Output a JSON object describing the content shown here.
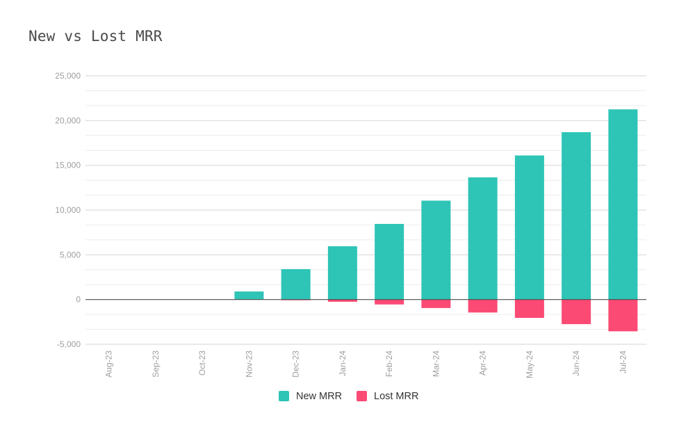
{
  "chart_data": {
    "type": "bar",
    "title": "New vs Lost MRR",
    "xlabel": "",
    "ylabel": "",
    "categories": [
      "Aug-23",
      "Sep-23",
      "Oct-23",
      "Nov-23",
      "Dec-23",
      "Jan-24",
      "Feb-24",
      "Mar-24",
      "Apr-24",
      "May-24",
      "Jun-24",
      "Jul-24"
    ],
    "series": [
      {
        "name": "New MRR",
        "color": "#2ec4b6",
        "values": [
          0,
          0,
          0,
          900,
          3400,
          5950,
          8450,
          11050,
          13650,
          16100,
          18700,
          21250
        ]
      },
      {
        "name": "Lost MRR",
        "color": "#fb4a74",
        "values": [
          0,
          0,
          0,
          0,
          -50,
          -250,
          -550,
          -950,
          -1450,
          -2050,
          -2750,
          -3550
        ]
      }
    ],
    "ylim": [
      -5000,
      25000
    ],
    "yticks": [
      -5000,
      0,
      5000,
      10000,
      15000,
      20000,
      25000
    ],
    "ytick_labels": [
      "-5,000",
      "0",
      "5,000",
      "10,000",
      "15,000",
      "20,000",
      "25,000"
    ],
    "grid": true,
    "minor_grid": true,
    "legend": "bottom"
  }
}
